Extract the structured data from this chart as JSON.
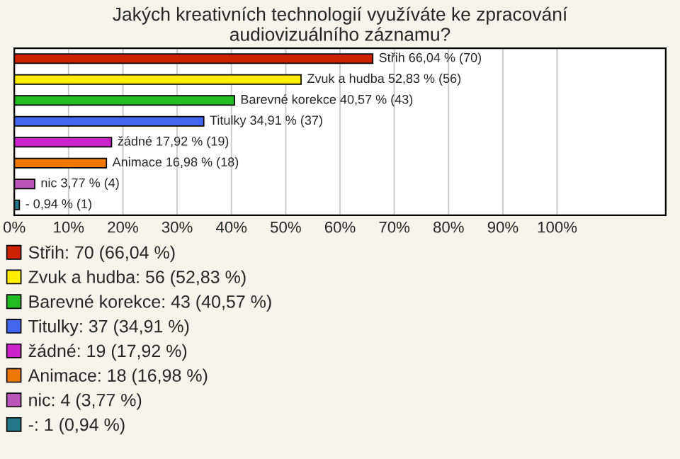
{
  "chart_data": {
    "type": "bar",
    "orientation": "horizontal",
    "title": "Jakých kreativních technologií využíváte ke zpracování\naudiovizuálního záznamu?",
    "categories": [
      null,
      null,
      null,
      null,
      null,
      null,
      null,
      null
    ],
    "series": [
      {
        "name": "Střih: 70 (66,04 %)",
        "color": "#cc2200",
        "values": [
          66.04,
          null,
          null,
          null,
          null,
          null,
          null,
          null
        ],
        "value_labels": [
          "Střih 66,04 % (70)",
          null,
          null,
          null,
          null,
          null,
          null,
          null
        ]
      },
      {
        "name": "Zvuk a hudba: 56 (52,83 %)",
        "color": "#ffee00",
        "values": [
          null,
          52.83,
          null,
          null,
          null,
          null,
          null,
          null
        ],
        "value_labels": [
          null,
          "Zvuk a hudba 52,83 % (56)",
          null,
          null,
          null,
          null,
          null,
          null
        ]
      },
      {
        "name": "Barevné korekce: 43 (40,57 %)",
        "color": "#22bb22",
        "values": [
          null,
          null,
          40.57,
          null,
          null,
          null,
          null,
          null
        ],
        "value_labels": [
          null,
          null,
          "Barevné korekce 40,57 % (43)",
          null,
          null,
          null,
          null,
          null
        ]
      },
      {
        "name": "Titulky: 37 (34,91 %)",
        "color": "#4466ee",
        "values": [
          null,
          null,
          null,
          34.91,
          null,
          null,
          null,
          null
        ],
        "value_labels": [
          null,
          null,
          null,
          "Titulky 34,91 % (37)",
          null,
          null,
          null,
          null
        ]
      },
      {
        "name": "žádné: 19 (17,92 %)",
        "color": "#cc22cc",
        "values": [
          null,
          null,
          null,
          null,
          17.92,
          null,
          null,
          null
        ],
        "value_labels": [
          null,
          null,
          null,
          null,
          "žádné 17,92 % (19)",
          null,
          null,
          null
        ]
      },
      {
        "name": "Animace: 18 (16,98 %)",
        "color": "#ee7700",
        "values": [
          null,
          null,
          null,
          null,
          null,
          16.98,
          null,
          null
        ],
        "value_labels": [
          null,
          null,
          null,
          null,
          null,
          "Animace 16,98 % (18)",
          null,
          null
        ]
      },
      {
        "name": "nic: 4 (3,77 %)",
        "color": "#bb55bb",
        "values": [
          null,
          null,
          null,
          null,
          null,
          null,
          3.77,
          null
        ],
        "value_labels": [
          null,
          null,
          null,
          null,
          null,
          null,
          "nic 3,77 % (4)",
          null
        ]
      },
      {
        "name": "-: 1 (0,94 %)",
        "color": "#227788",
        "values": [
          null,
          null,
          null,
          null,
          null,
          null,
          null,
          0.94
        ],
        "value_labels": [
          null,
          null,
          null,
          null,
          null,
          null,
          null,
          "- 0,94 % (1)"
        ]
      }
    ],
    "xlim": [
      0,
      120
    ],
    "xticks": [
      {
        "value": 0,
        "label": "0%"
      },
      {
        "value": 10,
        "label": "10%"
      },
      {
        "value": 20,
        "label": "20%"
      },
      {
        "value": 30,
        "label": "30%"
      },
      {
        "value": 40,
        "label": "40%"
      },
      {
        "value": 50,
        "label": "50%"
      },
      {
        "value": 60,
        "label": "60%"
      },
      {
        "value": 70,
        "label": "70%"
      },
      {
        "value": 80,
        "label": "80%"
      },
      {
        "value": 90,
        "label": "90%"
      },
      {
        "value": 100,
        "label": "100%"
      }
    ],
    "grid": "x",
    "legend": "bottom"
  }
}
